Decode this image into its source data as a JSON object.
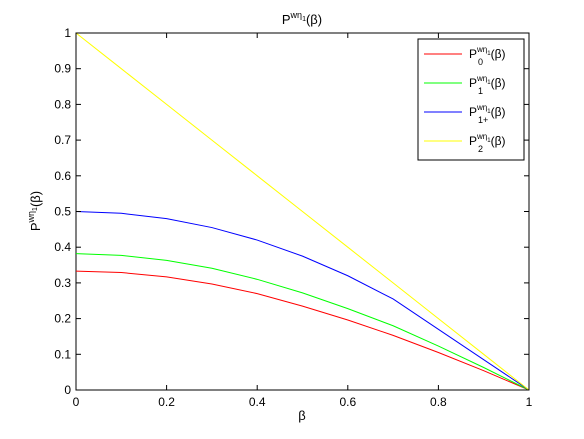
{
  "chart_data": {
    "type": "line",
    "title": {
      "base": "P",
      "sup": "wη",
      "subsup": "1",
      "suffix": "(β)"
    },
    "xlabel": "β",
    "ylabel": {
      "base": "P",
      "sup": "wη",
      "subsup": "1",
      "suffix": "(β)"
    },
    "xlim": [
      0,
      1
    ],
    "ylim": [
      0,
      1
    ],
    "xticks": [
      0,
      0.2,
      0.4,
      0.6,
      0.8,
      1
    ],
    "xtick_labels": [
      "0",
      "0.2",
      "0.4",
      "0.6",
      "0.8",
      "1"
    ],
    "yticks": [
      0,
      0.1,
      0.2,
      0.3,
      0.4,
      0.5,
      0.6,
      0.7,
      0.8,
      0.9,
      1
    ],
    "ytick_labels": [
      "0",
      "0.1",
      "0.2",
      "0.3",
      "0.4",
      "0.5",
      "0.6",
      "0.7",
      "0.8",
      "0.9",
      "1"
    ],
    "grid": false,
    "legend_position": "top-right",
    "x": [
      0,
      0.1,
      0.2,
      0.3,
      0.4,
      0.5,
      0.6,
      0.7,
      0.8,
      0.9,
      1
    ],
    "series": [
      {
        "name": {
          "base": "P",
          "sup": "wη",
          "subsup": "1",
          "sub": "0",
          "suffix": "(β)"
        },
        "color": "#ff0000",
        "values": [
          0.333,
          0.329,
          0.317,
          0.297,
          0.27,
          0.235,
          0.196,
          0.153,
          0.105,
          0.054,
          0.0
        ]
      },
      {
        "name": {
          "base": "P",
          "sup": "wη",
          "subsup": "1",
          "sub": "1",
          "suffix": "(β)"
        },
        "color": "#00ff00",
        "values": [
          0.382,
          0.377,
          0.363,
          0.341,
          0.31,
          0.272,
          0.228,
          0.18,
          0.123,
          0.063,
          0.0
        ]
      },
      {
        "name": {
          "base": "P",
          "sup": "wη",
          "subsup": "1",
          "sub": "1+",
          "suffix": "(β)"
        },
        "color": "#0000ff",
        "values": [
          0.5,
          0.495,
          0.48,
          0.455,
          0.42,
          0.375,
          0.32,
          0.255,
          0.17,
          0.085,
          0.0
        ]
      },
      {
        "name": {
          "base": "P",
          "sup": "wη",
          "subsup": "1",
          "sub": "2",
          "suffix": "(β)"
        },
        "color": "#ffff00",
        "values": [
          1.0,
          0.9,
          0.8,
          0.7,
          0.6,
          0.5,
          0.4,
          0.3,
          0.2,
          0.1,
          0.0
        ]
      }
    ]
  }
}
